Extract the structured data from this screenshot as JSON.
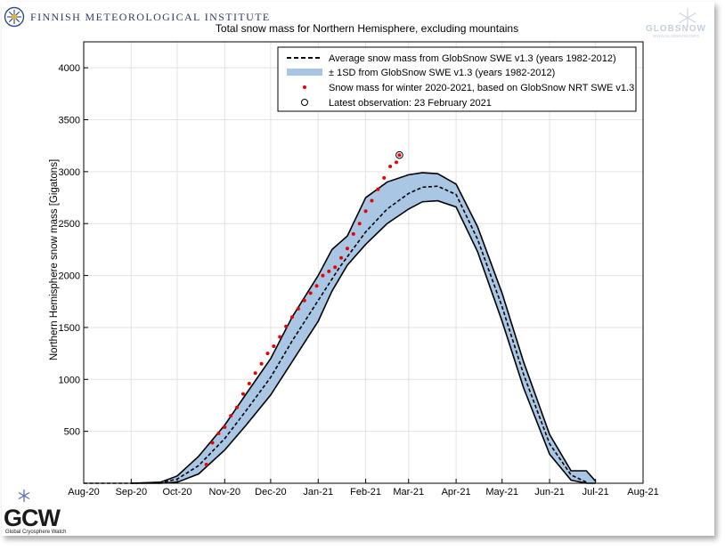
{
  "header": {
    "institute": "Finnish Meteorological Institute",
    "globsnow_logo": "GLOBSNOW",
    "globsnow_url": "WWW.GLOBSNOW.INFO",
    "gcw_logo": "GCW",
    "gcw_caption": "Global Cryosphere Watch"
  },
  "colors": {
    "band_fill": "#a9c6e4",
    "band_edge": "#000000",
    "average_line": "#000000",
    "observations": "#ee0000",
    "grid": "#e3e3e3"
  },
  "chart_data": {
    "type": "line",
    "title": "Total snow mass for Northern Hemisphere, excluding mountains",
    "xlabel": "",
    "ylabel": "Northern Hemisphere snow mass [Gigatons]",
    "x_tick_labels": [
      "Aug-20",
      "Sep-20",
      "Oct-20",
      "Nov-20",
      "Dec-20",
      "Jan-21",
      "Feb-21",
      "Mar-21",
      "Apr-21",
      "May-21",
      "Jun-21",
      "Jul-21",
      "Aug-21"
    ],
    "x_ticks": [
      "2020-08-01",
      "2020-09-01",
      "2020-10-01",
      "2020-11-01",
      "2020-12-01",
      "2021-01-01",
      "2021-02-01",
      "2021-03-01",
      "2021-04-01",
      "2021-05-01",
      "2021-06-01",
      "2021-07-01",
      "2021-08-01"
    ],
    "xlim": [
      "2020-08-01",
      "2021-08-01"
    ],
    "y_ticks": [
      500,
      1000,
      1500,
      2000,
      2500,
      3000,
      3500,
      4000
    ],
    "ylim": [
      0,
      4250
    ],
    "grid": true,
    "legend_position": "top-right",
    "legend": [
      "Average snow mass from GlobSnow SWE v1.3 (years 1982-2012)",
      "± 1SD from GlobSnow SWE v1.3 (years 1982-2012)",
      "Snow mass for winter 2020-2021, based on GlobSnow NRT SWE v1.3",
      "Latest observation: 23 February 2021"
    ],
    "series": [
      {
        "name": "Average snow mass from GlobSnow SWE v1.3 (years 1982-2012)",
        "style": "dashed",
        "x": [
          "2020-08-01",
          "2020-09-01",
          "2020-09-20",
          "2020-10-01",
          "2020-10-15",
          "2020-11-01",
          "2020-11-15",
          "2020-12-01",
          "2020-12-15",
          "2021-01-01",
          "2021-01-15",
          "2021-02-01",
          "2021-02-15",
          "2021-03-01",
          "2021-03-10",
          "2021-03-20",
          "2021-04-01",
          "2021-04-15",
          "2021-05-01",
          "2021-05-15",
          "2021-06-01",
          "2021-06-15",
          "2021-06-25"
        ],
        "y": [
          0,
          0,
          5,
          40,
          170,
          430,
          700,
          1020,
          1370,
          1760,
          2080,
          2420,
          2640,
          2790,
          2850,
          2860,
          2780,
          2350,
          1700,
          1050,
          380,
          80,
          10
        ]
      },
      {
        "name": "± 1SD from GlobSnow SWE v1.3 (years 1982-2012)",
        "style": "band",
        "x": [
          "2020-09-01",
          "2020-09-20",
          "2020-10-01",
          "2020-10-15",
          "2020-11-01",
          "2020-11-15",
          "2020-12-01",
          "2020-12-15",
          "2021-01-01",
          "2021-01-10",
          "2021-01-20",
          "2021-02-01",
          "2021-02-15",
          "2021-03-01",
          "2021-03-10",
          "2021-03-20",
          "2021-04-01",
          "2021-04-15",
          "2021-05-01",
          "2021-05-15",
          "2021-06-01",
          "2021-06-15",
          "2021-06-25",
          "2021-07-01"
        ],
        "upper": [
          0,
          10,
          70,
          260,
          560,
          860,
          1200,
          1600,
          2000,
          2250,
          2380,
          2750,
          2900,
          2970,
          2990,
          2980,
          2880,
          2470,
          1830,
          1170,
          470,
          120,
          120,
          20
        ],
        "lower": [
          0,
          0,
          10,
          90,
          320,
          560,
          850,
          1170,
          1560,
          1850,
          2100,
          2300,
          2500,
          2640,
          2710,
          2720,
          2660,
          2230,
          1560,
          920,
          280,
          30,
          0,
          0
        ]
      },
      {
        "name": "Snow mass for winter 2020-2021, based on GlobSnow NRT SWE v1.3",
        "style": "markers",
        "x": [
          "2020-10-20",
          "2020-10-24",
          "2020-10-28",
          "2020-11-01",
          "2020-11-05",
          "2020-11-09",
          "2020-11-13",
          "2020-11-17",
          "2020-11-21",
          "2020-11-25",
          "2020-11-29",
          "2020-12-03",
          "2020-12-07",
          "2020-12-11",
          "2020-12-15",
          "2020-12-19",
          "2020-12-23",
          "2020-12-27",
          "2020-12-31",
          "2021-01-04",
          "2021-01-08",
          "2021-01-12",
          "2021-01-16",
          "2021-01-20",
          "2021-01-24",
          "2021-01-28",
          "2021-02-01",
          "2021-02-05",
          "2021-02-09",
          "2021-02-13",
          "2021-02-17",
          "2021-02-21"
        ],
        "y": [
          180,
          390,
          480,
          540,
          650,
          730,
          860,
          960,
          1060,
          1150,
          1250,
          1320,
          1410,
          1510,
          1600,
          1680,
          1760,
          1830,
          1900,
          2000,
          2040,
          2080,
          2170,
          2260,
          2400,
          2500,
          2620,
          2720,
          2830,
          2940,
          3050,
          3090
        ]
      }
    ],
    "latest_observation": {
      "date": "2021-02-23",
      "value": 3160
    }
  }
}
